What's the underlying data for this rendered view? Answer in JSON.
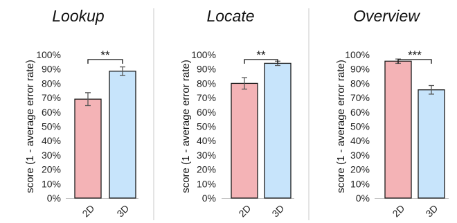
{
  "chart_data": [
    {
      "type": "bar",
      "title": "Lookup",
      "ylabel": "score (1 - average error rate)",
      "categories": [
        "2D",
        "3D"
      ],
      "values": [
        69,
        88.5
      ],
      "errors": [
        4.5,
        3
      ],
      "ylim": [
        0,
        100
      ],
      "yticks": [
        "0%",
        "10%",
        "20%",
        "30%",
        "40%",
        "50%",
        "60%",
        "70%",
        "80%",
        "90%",
        "100%"
      ],
      "grid": false,
      "significance": "**"
    },
    {
      "type": "bar",
      "title": "Locate",
      "ylabel": "score (1 - average error rate)",
      "categories": [
        "2D",
        "3D"
      ],
      "values": [
        80,
        94
      ],
      "errors": [
        4,
        1.5
      ],
      "ylim": [
        0,
        100
      ],
      "yticks": [
        "0%",
        "10%",
        "20%",
        "30%",
        "40%",
        "50%",
        "60%",
        "70%",
        "80%",
        "90%",
        "100%"
      ],
      "grid": false,
      "significance": "**"
    },
    {
      "type": "bar",
      "title": "Overview",
      "ylabel": "score (1 - average error rate)",
      "categories": [
        "2D",
        "3D"
      ],
      "values": [
        95.5,
        75.5
      ],
      "errors": [
        1.5,
        3
      ],
      "ylim": [
        0,
        100
      ],
      "yticks": [
        "0%",
        "10%",
        "20%",
        "30%",
        "40%",
        "50%",
        "60%",
        "70%",
        "80%",
        "90%",
        "100%"
      ],
      "grid": false,
      "significance": "***"
    }
  ],
  "colors": {
    "bar_2d": "#f4b3b6",
    "bar_3d": "#c7e4fb",
    "bar_stroke": "#1a1a1a",
    "axis": "#bfbfbf",
    "divider": "#c8c8c8",
    "error_bar": "#555555",
    "bracket": "#111111"
  }
}
